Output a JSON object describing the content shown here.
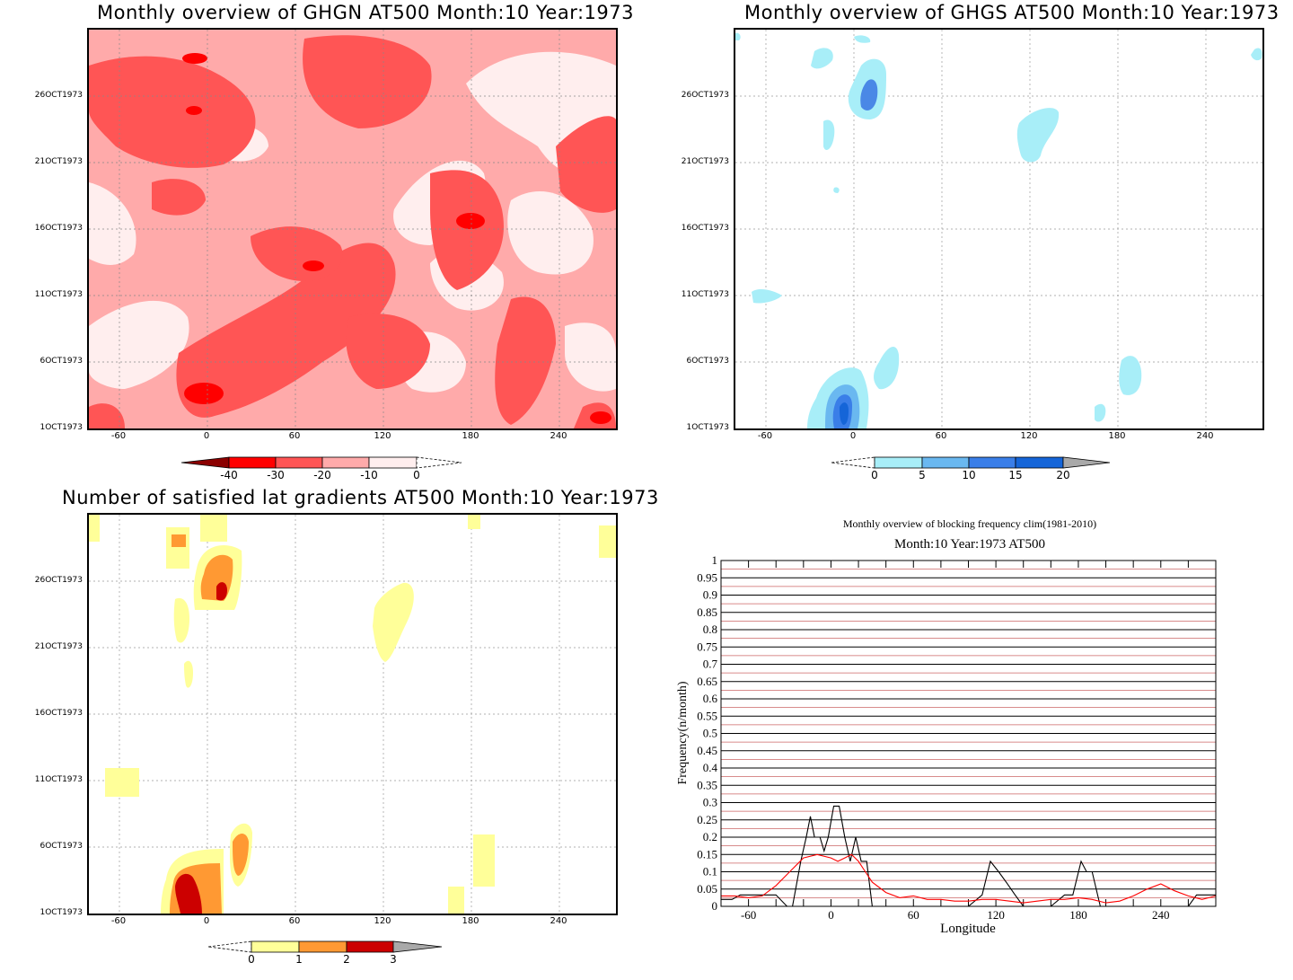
{
  "colors": {
    "red_palette": [
      "#ffeeee",
      "#ffaaaa",
      "#ff5555",
      "#ff0000",
      "#8b0000"
    ],
    "blue_palette": [
      "#a8eef8",
      "#6ab8f0",
      "#3a7ee8",
      "#1565d8"
    ],
    "yellow_palette": [
      "#ffff99",
      "#ff9933",
      "#cc0000"
    ],
    "grey": "#a9a9a9"
  },
  "panel1": {
    "title": "Monthly overview of GHGN AT500 Month:10 Year:1973",
    "y_ticks": [
      "26OCT1973",
      "21OCT1973",
      "16OCT1973",
      "11OCT1973",
      "6OCT1973",
      "1OCT1973"
    ],
    "x_ticks": [
      "-60",
      "0",
      "60",
      "120",
      "180",
      "240"
    ],
    "colorbar": [
      "-40",
      "-30",
      "-20",
      "-10",
      "0"
    ]
  },
  "panel2": {
    "title": "Monthly overview of GHGS AT500 Month:10 Year:1973",
    "y_ticks": [
      "26OCT1973",
      "21OCT1973",
      "16OCT1973",
      "11OCT1973",
      "6OCT1973",
      "1OCT1973"
    ],
    "x_ticks": [
      "-60",
      "0",
      "60",
      "120",
      "180",
      "240"
    ],
    "colorbar": [
      "0",
      "5",
      "10",
      "15",
      "20"
    ]
  },
  "panel3": {
    "title": "Number of satisfied lat gradients AT500 Month:10 Year:1973",
    "y_ticks": [
      "26OCT1973",
      "21OCT1973",
      "16OCT1973",
      "11OCT1973",
      "6OCT1973",
      "1OCT1973"
    ],
    "x_ticks": [
      "-60",
      "0",
      "60",
      "120",
      "180",
      "240"
    ],
    "colorbar": [
      "0",
      "1",
      "2",
      "3"
    ]
  },
  "panel4": {
    "title": "Monthly overview of blocking frequency clim(1981-2010)",
    "subtitle": "Month:10 Year:1973  AT500",
    "xlabel": "Longitude",
    "ylabel": "Frequency(n/month)",
    "y_ticks": [
      "1",
      "0.95",
      "0.9",
      "0.85",
      "0.8",
      "0.75",
      "0.7",
      "0.65",
      "0.6",
      "0.55",
      "0.5",
      "0.45",
      "0.4",
      "0.35",
      "0.3",
      "0.25",
      "0.2",
      "0.15",
      "0.1",
      "0.05",
      "0"
    ],
    "x_ticks": [
      "-60",
      "0",
      "60",
      "120",
      "180",
      "240"
    ]
  },
  "chart_data": [
    {
      "type": "heatmap",
      "title": "Monthly overview of GHGN AT500 Month:10 Year:1973",
      "x_range": [
        -75,
        285
      ],
      "y_range": [
        "1OCT1973",
        "31OCT1973"
      ],
      "levels": [
        -40,
        -30,
        -20,
        -10,
        0
      ],
      "note": "filled contour field, negative values shaded red"
    },
    {
      "type": "heatmap",
      "title": "Monthly overview of GHGS AT500 Month:10 Year:1973",
      "x_range": [
        -75,
        285
      ],
      "y_range": [
        "1OCT1973",
        "31OCT1973"
      ],
      "levels": [
        0,
        5,
        10,
        15,
        20
      ]
    },
    {
      "type": "heatmap",
      "title": "Number of satisfied lat gradients AT500 Month:10 Year:1973",
      "x_range": [
        -75,
        285
      ],
      "y_range": [
        "1OCT1973",
        "31OCT1973"
      ],
      "levels": [
        0,
        1,
        2,
        3
      ]
    },
    {
      "type": "line",
      "title": "Monthly overview of blocking frequency clim(1981-2010)",
      "subtitle": "Month:10 Year:1973  AT500",
      "xlabel": "Longitude",
      "ylabel": "Frequency(n/month)",
      "xlim": [
        -80,
        280
      ],
      "ylim": [
        0,
        1
      ],
      "series": [
        {
          "color": "#000000",
          "x": [
            -80,
            -72,
            -66,
            -60,
            -50,
            -40,
            -32,
            -28,
            -22,
            -18,
            -15,
            -12,
            -8,
            -5,
            -2,
            2,
            6,
            10,
            14,
            18,
            22,
            26,
            30,
            36,
            42,
            50,
            60,
            80,
            100,
            110,
            116,
            122,
            128,
            134,
            140,
            150,
            160,
            170,
            176,
            182,
            186,
            190,
            196,
            202,
            210,
            220,
            240,
            260,
            266,
            272,
            280
          ],
          "y": [
            0.02,
            0.02,
            0.033,
            0.033,
            0.033,
            0.033,
            0.0,
            0.0,
            0.13,
            0.2,
            0.26,
            0.2,
            0.2,
            0.16,
            0.2,
            0.29,
            0.29,
            0.2,
            0.13,
            0.2,
            0.13,
            0.13,
            0.0,
            0.0,
            0.0,
            0.0,
            0.0,
            0.0,
            0.0,
            0.033,
            0.13,
            0.1,
            0.067,
            0.033,
            0.0,
            0.0,
            0.0,
            0.033,
            0.033,
            0.13,
            0.1,
            0.1,
            0.0,
            0.0,
            0.0,
            0.0,
            0.0,
            0.0,
            0.033,
            0.033,
            0.033
          ]
        },
        {
          "color": "#ff0000",
          "x": [
            -80,
            -70,
            -60,
            -50,
            -40,
            -30,
            -20,
            -10,
            0,
            5,
            10,
            15,
            20,
            25,
            30,
            40,
            50,
            60,
            70,
            80,
            90,
            100,
            110,
            120,
            130,
            140,
            150,
            160,
            170,
            180,
            190,
            200,
            210,
            220,
            230,
            240,
            250,
            260,
            270,
            280
          ],
          "y": [
            0.03,
            0.03,
            0.025,
            0.03,
            0.06,
            0.1,
            0.14,
            0.15,
            0.14,
            0.13,
            0.14,
            0.15,
            0.13,
            0.1,
            0.07,
            0.04,
            0.025,
            0.03,
            0.02,
            0.02,
            0.015,
            0.015,
            0.02,
            0.02,
            0.015,
            0.01,
            0.015,
            0.02,
            0.02,
            0.025,
            0.02,
            0.01,
            0.015,
            0.03,
            0.05,
            0.065,
            0.045,
            0.03,
            0.02,
            0.03
          ]
        }
      ]
    }
  ]
}
